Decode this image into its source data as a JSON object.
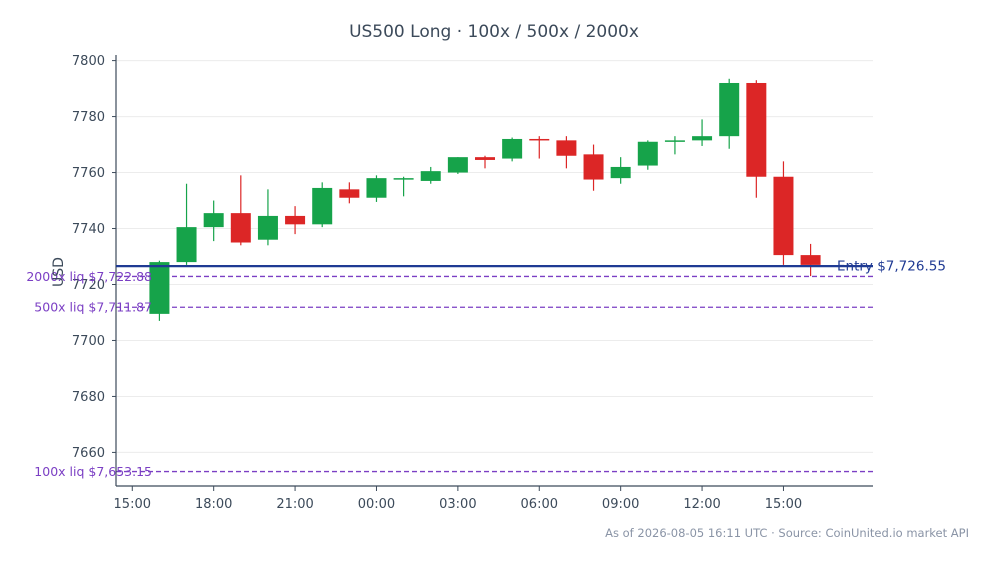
{
  "chart_data": {
    "type": "candlestick",
    "title": "US500 Long · 100x / 500x / 2000x",
    "ylabel": "USD",
    "ylim": [
      7648,
      7802
    ],
    "yticks": [
      7660,
      7680,
      7700,
      7720,
      7740,
      7760,
      7780,
      7800
    ],
    "x_start_hour": 15,
    "x_end_hour": 42.3,
    "xticks": [
      {
        "hour": 15,
        "label": "15:00"
      },
      {
        "hour": 18,
        "label": "18:00"
      },
      {
        "hour": 21,
        "label": "21:00"
      },
      {
        "hour": 24,
        "label": "00:00"
      },
      {
        "hour": 27,
        "label": "03:00"
      },
      {
        "hour": 30,
        "label": "06:00"
      },
      {
        "hour": 33,
        "label": "09:00"
      },
      {
        "hour": 36,
        "label": "12:00"
      },
      {
        "hour": 39,
        "label": "15:00"
      }
    ],
    "candles": [
      {
        "t": "16:00",
        "open": 7709.5,
        "high": 7728.5,
        "low": 7707,
        "close": 7728
      },
      {
        "t": "17:00",
        "open": 7728,
        "high": 7756,
        "low": 7727,
        "close": 7740.5
      },
      {
        "t": "18:00",
        "open": 7740.5,
        "high": 7750,
        "low": 7735.5,
        "close": 7745.5
      },
      {
        "t": "19:00",
        "open": 7745.5,
        "high": 7759,
        "low": 7734,
        "close": 7735
      },
      {
        "t": "20:00",
        "open": 7736,
        "high": 7754,
        "low": 7734,
        "close": 7744.5
      },
      {
        "t": "21:00",
        "open": 7744.5,
        "high": 7748,
        "low": 7738,
        "close": 7741.5
      },
      {
        "t": "22:00",
        "open": 7741.5,
        "high": 7756.5,
        "low": 7740.5,
        "close": 7754.5
      },
      {
        "t": "23:00",
        "open": 7754,
        "high": 7756.5,
        "low": 7749,
        "close": 7751
      },
      {
        "t": "00:00",
        "open": 7751,
        "high": 7759,
        "low": 7749.5,
        "close": 7758
      },
      {
        "t": "01:00",
        "open": 7757.5,
        "high": 7758.5,
        "low": 7751.5,
        "close": 7758
      },
      {
        "t": "02:00",
        "open": 7757,
        "high": 7762,
        "low": 7756,
        "close": 7760.5
      },
      {
        "t": "03:00",
        "open": 7760,
        "high": 7765.5,
        "low": 7759.5,
        "close": 7765.5
      },
      {
        "t": "04:00",
        "open": 7765.5,
        "high": 7766,
        "low": 7761.5,
        "close": 7764.5
      },
      {
        "t": "05:00",
        "open": 7765,
        "high": 7772.5,
        "low": 7764,
        "close": 7772
      },
      {
        "t": "06:00",
        "open": 7772,
        "high": 7773,
        "low": 7765,
        "close": 7771.5
      },
      {
        "t": "07:00",
        "open": 7771.5,
        "high": 7773,
        "low": 7761.5,
        "close": 7766
      },
      {
        "t": "08:00",
        "open": 7766.5,
        "high": 7770,
        "low": 7753.5,
        "close": 7757.5
      },
      {
        "t": "09:00",
        "open": 7758,
        "high": 7765.5,
        "low": 7756,
        "close": 7762
      },
      {
        "t": "10:00",
        "open": 7762.5,
        "high": 7771.5,
        "low": 7761,
        "close": 7771
      },
      {
        "t": "11:00",
        "open": 7771,
        "high": 7773,
        "low": 7766.5,
        "close": 7771.5
      },
      {
        "t": "12:00",
        "open": 7771.5,
        "high": 7779,
        "low": 7769.5,
        "close": 7773
      },
      {
        "t": "13:00",
        "open": 7773,
        "high": 7793.5,
        "low": 7768.5,
        "close": 7792
      },
      {
        "t": "14:00",
        "open": 7792,
        "high": 7793,
        "low": 7751,
        "close": 7758.5
      },
      {
        "t": "15:00",
        "open": 7758.5,
        "high": 7764,
        "low": 7727,
        "close": 7730.5
      },
      {
        "t": "16:00",
        "open": 7730.5,
        "high": 7734.5,
        "low": 7723,
        "close": 7727
      }
    ],
    "entry": {
      "price": 7726.55,
      "label": "Entry $7,726.55"
    },
    "liquidations": [
      {
        "price": 7722.88,
        "label": "2000x liq $7,722.88"
      },
      {
        "price": 7711.87,
        "label": "500x liq $7,711.87"
      },
      {
        "price": 7653.15,
        "label": "100x liq $7,653.15"
      }
    ],
    "footer": "As of 2026-08-05 16:11 UTC · Source: CoinUnited.io market API",
    "colors": {
      "up": "#16a34a",
      "down": "#dc2626",
      "entry": "#1f3a93",
      "liq": "#7b3fc4",
      "axis": "#3c4a5a",
      "grid": "#ececec"
    },
    "grid": true
  }
}
